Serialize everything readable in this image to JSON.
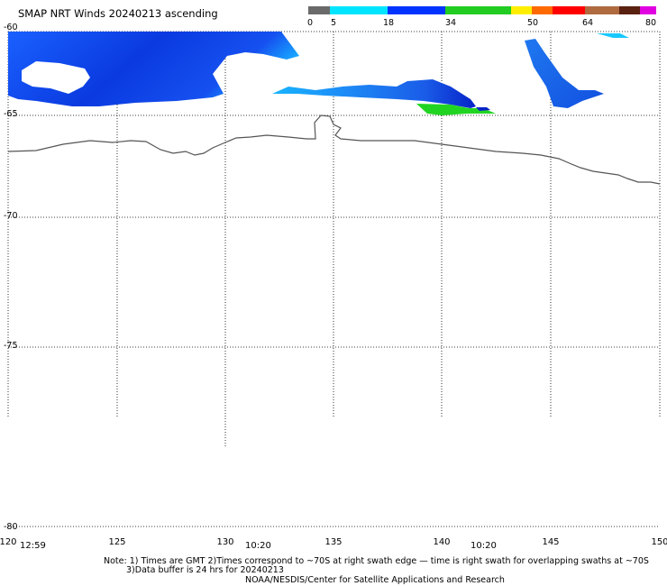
{
  "title": "SMAP NRT Winds 20240213 ascending",
  "colorbar": {
    "labels": [
      "0",
      "5",
      "18",
      "34",
      "50",
      "64",
      "80"
    ],
    "segments": [
      "#6a6a6a",
      "#00e5ff",
      "#0033ff",
      "#22cc22",
      "#ffee00",
      "#ff6a00",
      "#ff0000",
      "#b06a40",
      "#5a2010",
      "#e000e0",
      "#7000a0"
    ]
  },
  "map": {
    "lat_labels": [
      "-60",
      "-65",
      "-70",
      "-75",
      "-80"
    ],
    "lon_labels": [
      "120",
      "125",
      "130",
      "135",
      "140",
      "145",
      "150"
    ],
    "time_labels": [
      "12:59",
      "10:20",
      "10:20"
    ],
    "swath_colors": [
      "#0a2fd8",
      "#2a8af0",
      "#00c8ff",
      "#22d422"
    ]
  },
  "notes": {
    "line1": "Note:  1) Times are GMT  2)Times correspond to ~70S at right swath edge — time is right swath for overlapping swaths at ~70S",
    "line2": "3)Data buffer is 24 hrs for 20240213",
    "line3": "NOAA/NESDIS/Center for Satellite Applications and Research"
  }
}
